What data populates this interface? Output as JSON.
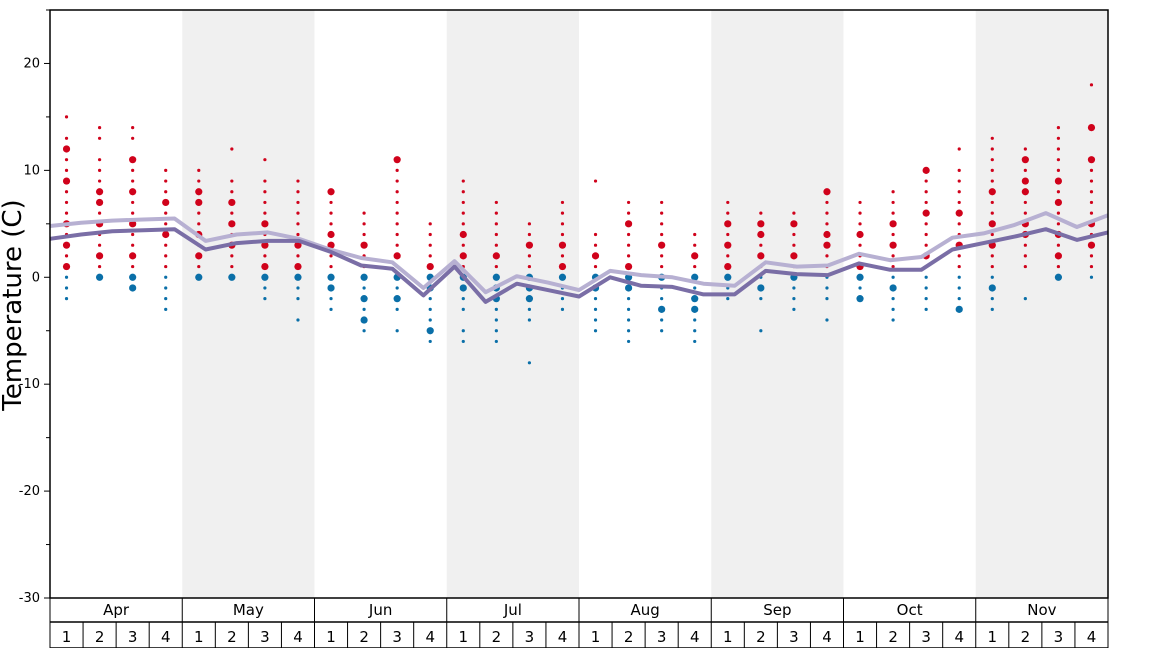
{
  "chart_data": {
    "type": "scatter",
    "ylabel": "Temperature (C)",
    "ylim": [
      -30,
      25
    ],
    "y_ticks": [
      20,
      10,
      0,
      -10,
      -20,
      -30
    ],
    "months": [
      "Apr",
      "May",
      "Jun",
      "Jul",
      "Aug",
      "Sep",
      "Oct",
      "Nov"
    ],
    "weeks": [
      "1",
      "2",
      "3",
      "4"
    ],
    "band_color": "#f0f0f0",
    "warm_color": "#d0021b",
    "cold_color": "#0a6fa8",
    "series": [
      {
        "color": "#b7b0d2",
        "values": [
          4.8,
          5.1,
          5.3,
          5.4,
          5.5,
          3.4,
          4.0,
          4.2,
          3.6,
          2.6,
          1.8,
          1.4,
          -1.0,
          1.5,
          -1.4,
          0.1,
          -0.5,
          -1.2,
          0.6,
          0.2,
          0.0,
          -0.6,
          -0.8,
          1.4,
          1.0,
          1.1,
          2.2,
          1.6,
          1.9,
          3.7,
          4.1,
          4.9,
          6.0,
          4.7,
          5.8
        ]
      },
      {
        "color": "#7a6ea6",
        "values": [
          3.6,
          4.0,
          4.3,
          4.4,
          4.5,
          2.6,
          3.2,
          3.4,
          3.4,
          2.4,
          1.1,
          0.8,
          -1.7,
          1.0,
          -2.3,
          -0.6,
          -1.2,
          -1.8,
          0.0,
          -0.8,
          -0.9,
          -1.6,
          -1.6,
          0.6,
          0.3,
          0.2,
          1.3,
          0.7,
          0.7,
          2.6,
          3.2,
          3.8,
          4.5,
          3.5,
          4.2
        ]
      }
    ],
    "weekly_points": [
      {
        "week": 0,
        "warm": [
          15,
          13,
          12,
          11,
          10,
          9,
          8,
          7,
          6,
          5,
          4,
          3,
          2,
          1,
          0,
          -1,
          -2
        ],
        "big": [
          12,
          9,
          5,
          3,
          1
        ]
      },
      {
        "week": 1,
        "warm": [
          14,
          13,
          11,
          10,
          9,
          8,
          7,
          6,
          5,
          4,
          3,
          2,
          1,
          0
        ],
        "big": [
          8,
          7,
          5,
          2,
          0
        ]
      },
      {
        "week": 2,
        "warm": [
          14,
          13,
          11,
          10,
          9,
          8,
          7,
          6,
          5,
          4,
          3,
          2,
          1,
          0,
          -1
        ],
        "big": [
          11,
          8,
          5,
          2,
          0,
          -1
        ]
      },
      {
        "week": 3,
        "warm": [
          10,
          9,
          8,
          7,
          6,
          5,
          4,
          3,
          2,
          1,
          0,
          -1,
          -2,
          -3
        ],
        "big": [
          7,
          4
        ]
      },
      {
        "week": 4,
        "warm": [
          10,
          9,
          8,
          7,
          6,
          5,
          4,
          3,
          2,
          1,
          0
        ],
        "big": [
          8,
          7,
          4,
          2,
          0
        ]
      },
      {
        "week": 5,
        "warm": [
          12,
          9,
          8,
          7,
          6,
          5,
          4,
          3,
          2,
          1,
          0
        ],
        "big": [
          7,
          5,
          3,
          0
        ]
      },
      {
        "week": 6,
        "warm": [
          11,
          9,
          8,
          7,
          6,
          5,
          4,
          3,
          2,
          1,
          0,
          -1,
          -2
        ],
        "big": [
          5,
          3,
          1,
          0
        ]
      },
      {
        "week": 7,
        "warm": [
          9,
          8,
          7,
          6,
          5,
          4,
          3,
          2,
          1,
          0,
          -1,
          -2,
          -4
        ],
        "big": [
          3,
          1,
          0
        ]
      },
      {
        "week": 8,
        "warm": [
          8,
          7,
          6,
          5,
          4,
          3,
          2,
          1,
          0,
          -1,
          -2,
          -3
        ],
        "big": [
          8,
          4,
          3,
          0,
          -1
        ]
      },
      {
        "week": 9,
        "warm": [
          6,
          5,
          4,
          3,
          2,
          1,
          0,
          -1,
          -2,
          -3,
          -4,
          -5
        ],
        "big": [
          3,
          0,
          -2,
          -4
        ]
      },
      {
        "week": 10,
        "warm": [
          11,
          10,
          9,
          8,
          7,
          6,
          5,
          4,
          3,
          2,
          1,
          0,
          -1,
          -2,
          -3,
          -5
        ],
        "big": [
          11,
          2,
          0,
          -2
        ]
      },
      {
        "week": 11,
        "warm": [
          5,
          4,
          3,
          2,
          1,
          0,
          -1,
          -2,
          -3,
          -4,
          -5,
          -6
        ],
        "big": [
          1,
          0,
          -1,
          -5
        ]
      },
      {
        "week": 12,
        "warm": [
          9,
          8,
          7,
          6,
          5,
          4,
          3,
          2,
          1,
          0,
          -1,
          -2,
          -3,
          -5,
          -6
        ],
        "big": [
          4,
          2,
          0,
          -1
        ]
      },
      {
        "week": 13,
        "warm": [
          7,
          6,
          5,
          4,
          3,
          2,
          1,
          0,
          -1,
          -2,
          -3,
          -4,
          -5,
          -6
        ],
        "big": [
          2,
          0,
          -1,
          -2
        ]
      },
      {
        "week": 14,
        "warm": [
          5,
          4,
          3,
          2,
          1,
          0,
          -1,
          -2,
          -3,
          -4,
          -8
        ],
        "big": [
          3,
          0,
          -1,
          -2
        ]
      },
      {
        "week": 15,
        "warm": [
          7,
          6,
          5,
          4,
          3,
          2,
          1,
          0,
          -1,
          -2,
          -3
        ],
        "big": [
          3,
          1,
          0
        ]
      },
      {
        "week": 16,
        "warm": [
          9,
          4,
          3,
          2,
          1,
          0,
          -1,
          -2,
          -3,
          -4,
          -5
        ],
        "big": [
          2,
          0,
          -1
        ]
      },
      {
        "week": 17,
        "warm": [
          7,
          6,
          5,
          4,
          3,
          2,
          1,
          0,
          -1,
          -2,
          -3,
          -4,
          -5,
          -6
        ],
        "big": [
          5,
          1,
          0,
          -1
        ]
      },
      {
        "week": 18,
        "warm": [
          7,
          6,
          5,
          4,
          3,
          2,
          1,
          0,
          -1,
          -2,
          -3,
          -4,
          -5
        ],
        "big": [
          3,
          0,
          -3
        ]
      },
      {
        "week": 19,
        "warm": [
          4,
          3,
          2,
          1,
          0,
          -1,
          -2,
          -3,
          -4,
          -5,
          -6
        ],
        "big": [
          2,
          0,
          -2,
          -3
        ]
      },
      {
        "week": 20,
        "warm": [
          7,
          6,
          5,
          4,
          3,
          2,
          1,
          0,
          -1,
          -2
        ],
        "big": [
          5,
          3,
          1,
          0
        ]
      },
      {
        "week": 21,
        "warm": [
          6,
          5,
          4,
          3,
          2,
          1,
          0,
          -1,
          -2,
          -5
        ],
        "big": [
          5,
          4,
          2,
          -1
        ]
      },
      {
        "week": 22,
        "warm": [
          6,
          5,
          4,
          3,
          2,
          1,
          0,
          -1,
          -2,
          -3
        ],
        "big": [
          5,
          2,
          0
        ]
      },
      {
        "week": 23,
        "warm": [
          8,
          7,
          6,
          5,
          4,
          3,
          2,
          1,
          0,
          -1,
          -2,
          -4
        ],
        "big": [
          8,
          4,
          3
        ]
      },
      {
        "week": 24,
        "warm": [
          7,
          6,
          5,
          4,
          3,
          2,
          1,
          0,
          -1,
          -2
        ],
        "big": [
          4,
          1,
          0,
          -2
        ]
      },
      {
        "week": 25,
        "warm": [
          8,
          7,
          6,
          5,
          4,
          3,
          2,
          1,
          0,
          -1,
          -2,
          -3,
          -4
        ],
        "big": [
          5,
          3,
          -1
        ]
      },
      {
        "week": 26,
        "warm": [
          10,
          9,
          8,
          7,
          6,
          5,
          4,
          3,
          2,
          1,
          0,
          -1,
          -2,
          -3
        ],
        "big": [
          10,
          6,
          2
        ]
      },
      {
        "week": 27,
        "warm": [
          12,
          10,
          9,
          8,
          7,
          6,
          5,
          4,
          3,
          2,
          1,
          0,
          -1,
          -2,
          -3
        ],
        "big": [
          6,
          3,
          -3
        ]
      },
      {
        "week": 28,
        "warm": [
          13,
          12,
          11,
          10,
          9,
          8,
          7,
          6,
          5,
          4,
          3,
          2,
          1,
          0,
          -1,
          -2,
          -3
        ],
        "big": [
          8,
          5,
          3,
          -1
        ]
      },
      {
        "week": 29,
        "warm": [
          12,
          11,
          10,
          9,
          8,
          7,
          6,
          5,
          4,
          3,
          2,
          1,
          -2
        ],
        "big": [
          11,
          9,
          8,
          5,
          4
        ]
      },
      {
        "week": 30,
        "warm": [
          14,
          13,
          12,
          11,
          10,
          9,
          8,
          7,
          6,
          5,
          4,
          3,
          2,
          1,
          0
        ],
        "big": [
          9,
          7,
          4,
          2,
          0
        ]
      },
      {
        "week": 31,
        "warm": [
          18,
          14,
          11,
          10,
          9,
          8,
          7,
          6,
          5,
          4,
          3,
          2,
          1,
          0
        ],
        "big": [
          14,
          11,
          5,
          3
        ]
      }
    ]
  }
}
